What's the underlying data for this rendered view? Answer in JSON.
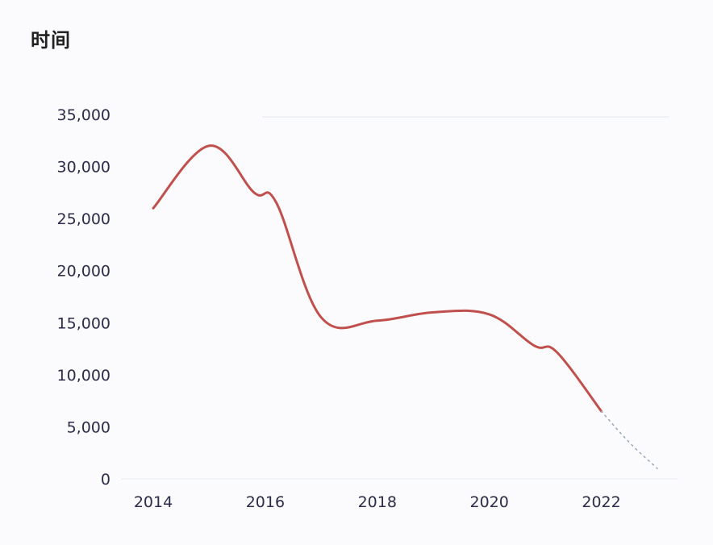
{
  "chart_data": {
    "type": "line",
    "title": "时间",
    "xlabel": "",
    "ylabel": "",
    "x_ticks": [
      "2014",
      "2016",
      "2018",
      "2020",
      "2022"
    ],
    "y_ticks": [
      "0",
      "5,000",
      "10,000",
      "15,000",
      "20,000",
      "25,000",
      "30,000",
      "35,000"
    ],
    "xlim": [
      2014,
      2023
    ],
    "ylim": [
      0,
      35000
    ],
    "grid": false,
    "series": [
      {
        "color": "#c0504d",
        "x": [
          2014,
          2015,
          2015.8,
          2016.2,
          2017,
          2018,
          2019,
          2020,
          2020.8,
          2021.2,
          2022
        ],
        "values": [
          26000,
          32000,
          27500,
          26500,
          15500,
          15200,
          16000,
          15800,
          12800,
          12200,
          6500
        ]
      },
      {
        "color": "#9aa6b8",
        "style": "dotted",
        "x": [
          2022,
          2022.5,
          2023
        ],
        "values": [
          6500,
          3500,
          1000
        ]
      }
    ]
  }
}
